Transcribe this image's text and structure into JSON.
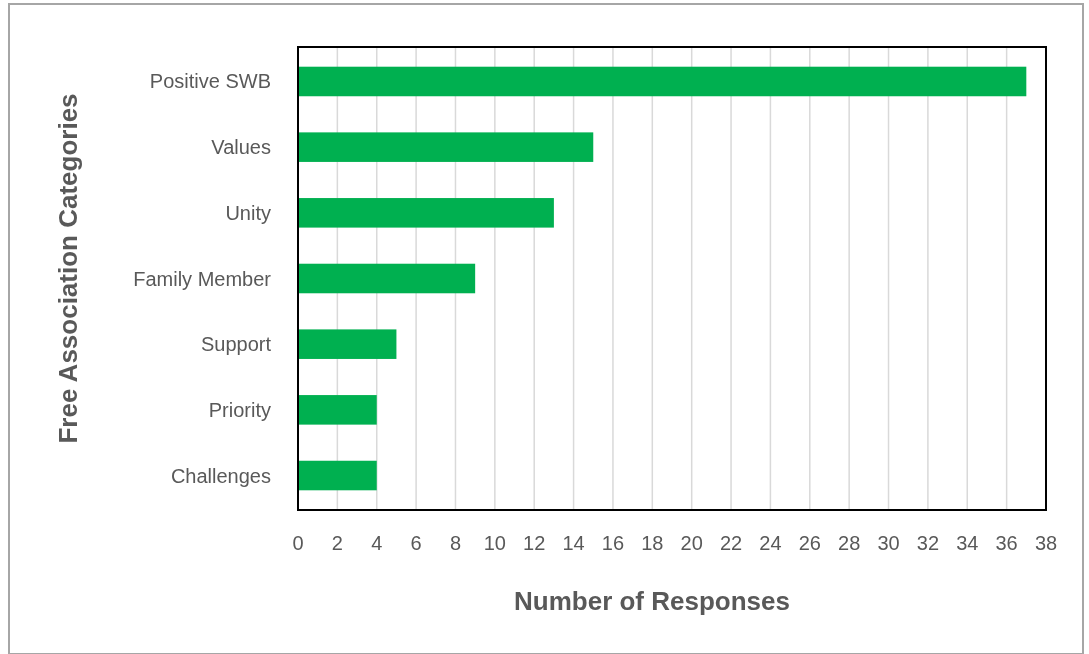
{
  "chart_data": {
    "type": "bar",
    "orientation": "horizontal",
    "xlabel": "Number of Responses",
    "ylabel": "Free Association Categories",
    "categories": [
      "Positive SWB",
      "Values",
      "Unity",
      "Family Member",
      "Support",
      "Priority",
      "Challenges"
    ],
    "values": [
      37,
      15,
      13,
      9,
      5,
      4,
      4
    ],
    "color": "#00b050",
    "xlim": [
      0,
      38
    ],
    "xticks": [
      0,
      2,
      4,
      6,
      8,
      10,
      12,
      14,
      16,
      18,
      20,
      22,
      24,
      26,
      28,
      30,
      32,
      34,
      36,
      38
    ],
    "grid": "x"
  }
}
